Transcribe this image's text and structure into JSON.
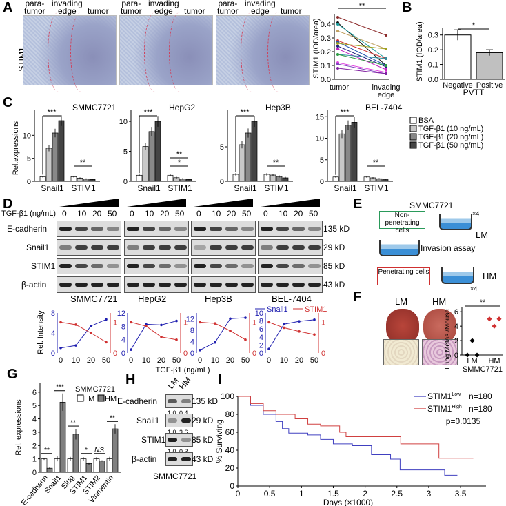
{
  "panels": {
    "A": "A",
    "B": "B",
    "C": "C",
    "D": "D",
    "E": "E",
    "F": "F",
    "G": "G",
    "H": "H",
    "I": "I"
  },
  "panelA": {
    "row_label": "STIM1",
    "region_labels": [
      [
        "para-",
        "tumor"
      ],
      [
        "invading",
        "edge"
      ],
      [
        "tumor"
      ]
    ]
  },
  "chart_data": [
    {
      "id": "A-paired",
      "type": "line",
      "ylabel": "STIM1 (IOD/area)",
      "categories": [
        "tumor",
        "invading edge"
      ],
      "ylim": [
        0,
        0.45
      ],
      "yticks": [
        "0.0",
        "0.1",
        "0.2",
        "0.3",
        "0.4"
      ],
      "significance": "**",
      "pairs": [
        [
          0.45,
          0.32
        ],
        [
          0.41,
          0.1
        ],
        [
          0.4,
          0.15
        ],
        [
          0.35,
          0.22
        ],
        [
          0.28,
          0.15
        ],
        [
          0.27,
          0.1
        ],
        [
          0.26,
          0.22
        ],
        [
          0.24,
          0.09
        ],
        [
          0.22,
          0.07
        ],
        [
          0.18,
          0.15
        ],
        [
          0.18,
          0.1
        ],
        [
          0.12,
          0.05
        ],
        [
          0.11,
          0.04
        ],
        [
          0.08,
          0.04
        ]
      ],
      "colors": [
        "#8b2a2a",
        "#111111",
        "#1a9a9a",
        "#c0a060",
        "#d03030",
        "#2050b0",
        "#a0a020",
        "#202080",
        "#c020c0",
        "#3090a0",
        "#30a040",
        "#e040e0",
        "#8040c0",
        "#8020a0"
      ]
    },
    {
      "id": "B",
      "type": "bar",
      "ylabel": "STIM1 (IOD/area)",
      "xlabel": "PVTT",
      "categories": [
        "Negative",
        "Positive"
      ],
      "values": [
        0.3,
        0.18
      ],
      "errors": [
        0.035,
        0.02
      ],
      "ylim": [
        0,
        0.35
      ],
      "yticks": [
        "0.0",
        "0.1",
        "0.2",
        "0.3"
      ],
      "significance": "*",
      "colors": [
        "#ffffff",
        "#c0c0c0"
      ]
    },
    {
      "id": "C",
      "type": "bar",
      "ylabel": "Rel.expressions",
      "legend": [
        "BSA",
        "TGF-β1 (10 ng/mL)",
        "TGF-β1 (20 ng/mL)",
        "TGF-β1 (50 ng/mL)"
      ],
      "colors": [
        "#ffffff",
        "#c8c8c8",
        "#888888",
        "#444444"
      ],
      "groups": [
        "Snail1",
        "STIM1"
      ],
      "panels": [
        {
          "title": "SMMC7721",
          "ylim": [
            0,
            15
          ],
          "yticks": [
            "0",
            "5",
            "10"
          ],
          "Snail1": [
            1,
            7.2,
            10.5,
            13.2
          ],
          "STIM1": [
            1,
            0.7,
            0.5,
            0.4
          ],
          "sig_snail": "***",
          "sig_stim": [
            "**"
          ]
        },
        {
          "title": "HepG2",
          "ylim": [
            0,
            11.5
          ],
          "yticks": [
            "0",
            "5",
            "10"
          ],
          "Snail1": [
            1,
            5.8,
            8.3,
            10
          ],
          "STIM1": [
            1,
            0.6,
            0.4,
            0.3
          ],
          "sig_snail": "***",
          "sig_stim": [
            "*",
            "**"
          ]
        },
        {
          "title": "Hep3B",
          "ylim": [
            0,
            10
          ],
          "yticks": [
            "0",
            "5"
          ],
          "Snail1": [
            1,
            5.3,
            7,
            8.7
          ],
          "STIM1": [
            1,
            0.9,
            0.7,
            0.5
          ],
          "sig_snail": "***",
          "sig_stim": [
            "**"
          ]
        },
        {
          "title": "BEL-7404",
          "ylim": [
            0,
            16
          ],
          "yticks": [
            "0",
            "5",
            "10",
            "15"
          ],
          "Snail1": [
            1,
            11,
            13,
            13.7
          ],
          "STIM1": [
            1,
            0.8,
            0.6,
            0.4
          ],
          "sig_snail": "***",
          "sig_stim": [
            "**"
          ]
        }
      ]
    },
    {
      "id": "D-lines",
      "type": "line",
      "ylabel": "Rel. Intensity",
      "xlabel": "TGF-β1 (ng/mL)",
      "x": [
        "0",
        "10",
        "20",
        "50"
      ],
      "series_names": [
        "Snail1",
        "STIM1"
      ],
      "colors": [
        "#2020b0",
        "#d03030"
      ],
      "panels": [
        {
          "left_ylim": [
            0,
            8
          ],
          "left_ticks": [
            "0",
            "4",
            "8"
          ],
          "Snail1": [
            1,
            1.5,
            5.4,
            6.7
          ],
          "STIM1": [
            1.0,
            0.92,
            0.65,
            0.35
          ]
        },
        {
          "left_ylim": [
            0,
            12
          ],
          "left_ticks": [
            "0",
            "4",
            "8",
            "12"
          ],
          "Snail1": [
            1,
            8.6,
            8.4,
            9.6
          ],
          "STIM1": [
            1.0,
            0.87,
            0.52,
            0.43
          ]
        },
        {
          "left_ylim": [
            0,
            14
          ],
          "left_ticks": [
            "0",
            "4",
            "8",
            "12"
          ],
          "Snail1": [
            1,
            3.7,
            12,
            12.3
          ],
          "STIM1": [
            1.0,
            0.96,
            0.72,
            0.43
          ]
        },
        {
          "left_ylim": [
            0,
            10
          ],
          "left_ticks": [
            "0",
            "2",
            "4",
            "6",
            "8",
            "10"
          ],
          "Snail1": [
            1,
            7.2,
            7.9,
            8.3
          ],
          "STIM1": [
            1.0,
            0.82,
            0.7,
            0.6
          ]
        }
      ],
      "right_ylim": [
        0,
        1.3
      ],
      "right_ticks": [
        "0",
        "1"
      ]
    },
    {
      "id": "F",
      "type": "scatter",
      "ylabel": "Lung Metas./Mouse",
      "xlabel": "SMMC7721",
      "categories": [
        "LM",
        "HM"
      ],
      "values": [
        [
          0,
          2,
          0
        ],
        [
          5,
          4,
          5
        ]
      ],
      "ylim": [
        0,
        6.5
      ],
      "yticks": [
        "0",
        "2",
        "4",
        "6"
      ],
      "significance": "**"
    },
    {
      "id": "G",
      "type": "bar",
      "ylabel": "Rel. expressions",
      "title": "SMMC7721",
      "legend": [
        "LM",
        "HM"
      ],
      "categories": [
        "E-cadherin",
        "Snail1",
        "Slug",
        "STIM1",
        "STIM2",
        "Vinmentin"
      ],
      "series": [
        {
          "name": "LM",
          "values": [
            1,
            1,
            1,
            1,
            1,
            1
          ],
          "errors": [
            0.08,
            0.18,
            0.15,
            0.12,
            0.12,
            0.15
          ]
        },
        {
          "name": "HM",
          "values": [
            0.3,
            5.25,
            2.85,
            0.65,
            0.85,
            3.25
          ],
          "errors": [
            0.1,
            0.65,
            0.4,
            0.08,
            0.05,
            0.35
          ]
        }
      ],
      "significance": [
        "**",
        "***",
        "**",
        "*",
        "NS",
        "**"
      ],
      "ylim": [
        0,
        6.3
      ],
      "yticks": [
        "0",
        "1",
        "2",
        "3",
        "4",
        "5",
        "6"
      ],
      "colors": [
        "#ffffff",
        "#808080"
      ]
    },
    {
      "id": "I",
      "type": "line",
      "ylabel": "% Surviving",
      "xlabel": "Days (×1000)",
      "xlim": [
        0,
        3.9
      ],
      "ylim": [
        0,
        100
      ],
      "xticks": [
        "0",
        "0.5",
        "1",
        "1.5",
        "2",
        "2.5",
        "3",
        "3.5"
      ],
      "yticks": [
        "0",
        "20",
        "40",
        "60",
        "80",
        "100"
      ],
      "p_value": "p=0.0135",
      "series": [
        {
          "name": "STIM1",
          "sup": "Low",
          "n": "n=180",
          "color": "#4040c0",
          "points": [
            [
              0,
              100
            ],
            [
              0.2,
              90
            ],
            [
              0.4,
              80
            ],
            [
              0.6,
              72
            ],
            [
              0.7,
              64
            ],
            [
              0.8,
              59
            ],
            [
              1.1,
              57
            ],
            [
              1.3,
              52
            ],
            [
              1.5,
              47
            ],
            [
              1.8,
              45
            ],
            [
              2.1,
              35
            ],
            [
              2.4,
              30
            ],
            [
              2.55,
              18
            ],
            [
              3.1,
              18
            ],
            [
              3.25,
              12
            ],
            [
              3.45,
              12
            ]
          ]
        },
        {
          "name": "STIM1",
          "sup": "High",
          "n": "n=180",
          "color": "#d04040",
          "points": [
            [
              0,
              100
            ],
            [
              0.2,
              92
            ],
            [
              0.4,
              84
            ],
            [
              0.6,
              80
            ],
            [
              0.9,
              75
            ],
            [
              1.1,
              69
            ],
            [
              1.3,
              67
            ],
            [
              1.6,
              60
            ],
            [
              1.7,
              55
            ],
            [
              2.55,
              55
            ],
            [
              2.56,
              47
            ],
            [
              3.15,
              47
            ],
            [
              3.16,
              31
            ],
            [
              3.7,
              31
            ]
          ]
        }
      ]
    }
  ],
  "panelD": {
    "treatment_label": "TGF-β1 (ng/mL)",
    "doses": [
      "0",
      "10",
      "20",
      "50"
    ],
    "rows": [
      "E-cadherin",
      "Snail1",
      "STIM1",
      "β-actin"
    ],
    "sizes": [
      "135 kD",
      "29 kD",
      "85 kD",
      "43 kD"
    ],
    "cells": [
      "SMMC7721",
      "HepG2",
      "Hep3B",
      "BEL-7404"
    ]
  },
  "panelE": {
    "title": "SMMC7721",
    "non_penetrating": "Non-penetrating cells",
    "penetrating": "Penetrating cells",
    "assay": "Invasion assay",
    "repeat": "×4",
    "lm": "LM",
    "hm": "HM"
  },
  "panelF": {
    "lm": "LM",
    "hm": "HM"
  },
  "panelH": {
    "lanes": [
      "LM",
      "HM"
    ],
    "rows": [
      "E-cadherin",
      "Snail1",
      "STIM1",
      "β-actin"
    ],
    "sizes": [
      "135 kD",
      "29 kD",
      "85 kD",
      "43 kD"
    ],
    "ratios": [
      [
        "1.0",
        "0.4"
      ],
      [
        "1.0",
        "3.6"
      ],
      [
        "1.0",
        "0.3"
      ]
    ],
    "cell": "SMMC7721"
  }
}
